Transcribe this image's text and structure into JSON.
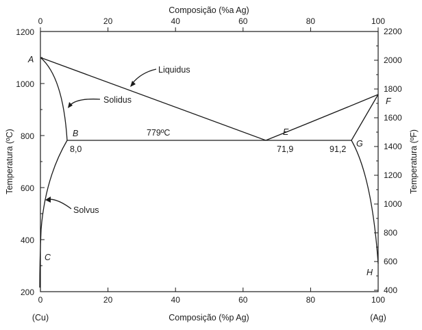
{
  "diagram": {
    "top_axis": {
      "title": "Composição (%a Ag)",
      "ticks": [
        "0",
        "20",
        "40",
        "60",
        "80",
        "100"
      ]
    },
    "bottom_axis": {
      "title": "Composição (%p Ag)",
      "ticks": [
        "0",
        "20",
        "40",
        "60",
        "80",
        "100"
      ],
      "left_end": "(Cu)",
      "right_end": "(Ag)"
    },
    "left_axis": {
      "title": "Temperatura (ºC)",
      "ticks": [
        "1200",
        "1000",
        "800",
        "600",
        "400",
        "200"
      ]
    },
    "right_axis": {
      "title": "Temperatura (ºF)",
      "ticks": [
        "2200",
        "2000",
        "1800",
        "1600",
        "1400",
        "1200",
        "1000",
        "800",
        "600",
        "400"
      ]
    },
    "points": {
      "A": "A",
      "B": "B",
      "C": "C",
      "E": "E",
      "F": "F",
      "G": "G",
      "H": "H"
    },
    "annotations": {
      "liquidus": "Liquidus",
      "solidus": "Solidus",
      "solvus": "Solvus",
      "eutectic_temp": "779ºC",
      "comp_b": "8,0",
      "comp_e": "71,9",
      "comp_g": "91,2"
    }
  }
}
